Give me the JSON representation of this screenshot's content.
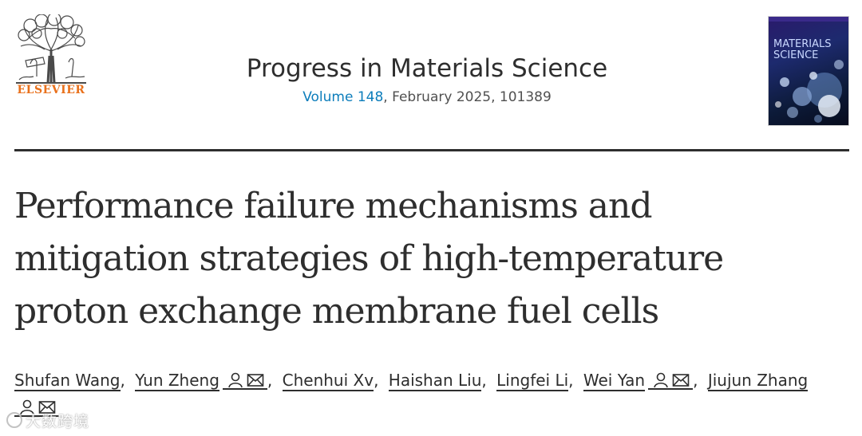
{
  "header": {
    "publisher": "ELSEVIER",
    "journal_title": "Progress in Materials Science",
    "volume_link": "Volume 148",
    "issue_rest": ", February 2025, 101389",
    "cover_text": "MATERIALS SCIENCE"
  },
  "article": {
    "title_lines": [
      "Performance failure mechanisms and",
      "mitigation strategies of high-temperature",
      "proton exchange membrane fuel cells"
    ]
  },
  "authors": [
    {
      "name": "Shufan Wang",
      "icons": false
    },
    {
      "name": "Yun Zheng",
      "icons": true
    },
    {
      "name": "Chenhui Xv",
      "icons": false
    },
    {
      "name": "Haishan Liu",
      "icons": false
    },
    {
      "name": "Lingfei Li",
      "icons": false
    },
    {
      "name": "Wei Yan",
      "icons": true
    },
    {
      "name": "Jiujun Zhang",
      "icons": true
    }
  ],
  "icons": {
    "person": "person-icon",
    "mail": "mail-icon"
  },
  "colors": {
    "text": "#2e2e2e",
    "link_blue": "#0c7dbb",
    "elsevier_orange": "#e9711c"
  },
  "watermark": "大数跨境"
}
